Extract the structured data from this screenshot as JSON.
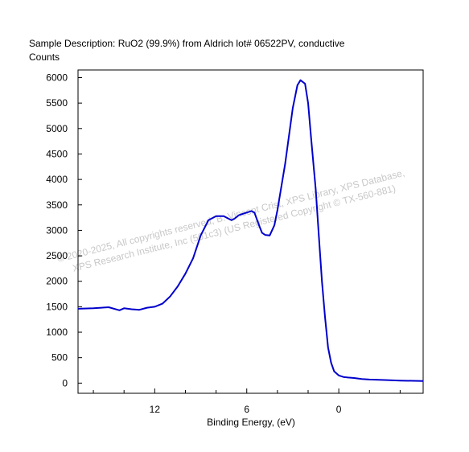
{
  "chart_data": {
    "type": "line",
    "title": "Sample Description:  RuO2 (99.9%) from Aldrich lot# 06522PV, conductive",
    "ylabel": "Counts",
    "xlabel": "Binding Energy, (eV)",
    "x_reversed": true,
    "xlim": [
      17,
      -5.5
    ],
    "ylim": [
      -200,
      6150
    ],
    "x_ticks": [
      12,
      6,
      0
    ],
    "y_ticks": [
      0,
      500,
      1000,
      1500,
      2000,
      2500,
      3000,
      3500,
      4000,
      4500,
      5000,
      5500,
      6000
    ],
    "line_color": "#0000cc",
    "grid": false,
    "series": [
      {
        "x": [
          17,
          16,
          15,
          14.3,
          14,
          13.5,
          13,
          12.5,
          12,
          11.5,
          11,
          10.5,
          10,
          9.5,
          9,
          8.5,
          8,
          7.5,
          7,
          6.8,
          6.5,
          6.2,
          6,
          5.7,
          5.5,
          5.2,
          5,
          4.8,
          4.5,
          4.2,
          4,
          3.5,
          3,
          2.7,
          2.5,
          2.2,
          2,
          1.8,
          1.5,
          1.3,
          1.1,
          0.9,
          0.7,
          0.5,
          0.3,
          0,
          -0.3,
          -0.6,
          -1,
          -1.5,
          -2,
          -3,
          -4,
          -5.5
        ],
        "y": [
          1460,
          1470,
          1490,
          1430,
          1470,
          1450,
          1440,
          1480,
          1500,
          1560,
          1700,
          1900,
          2150,
          2450,
          2900,
          3200,
          3280,
          3280,
          3200,
          3230,
          3300,
          3330,
          3350,
          3380,
          3350,
          3100,
          2950,
          2910,
          2900,
          3100,
          3400,
          4300,
          5400,
          5850,
          5950,
          5880,
          5500,
          4800,
          3800,
          2900,
          2000,
          1300,
          700,
          400,
          230,
          150,
          120,
          110,
          100,
          80,
          70,
          60,
          50,
          40
        ]
      }
    ]
  },
  "watermark": {
    "line1": "© 2020-2025,  All copyrights reserved,   B. Vincent Crist,   XPS Library, XPS Database,",
    "line2": "XPS Research Institute, Inc (501c3)   (US Registered Copyright © TX-560-881)"
  }
}
